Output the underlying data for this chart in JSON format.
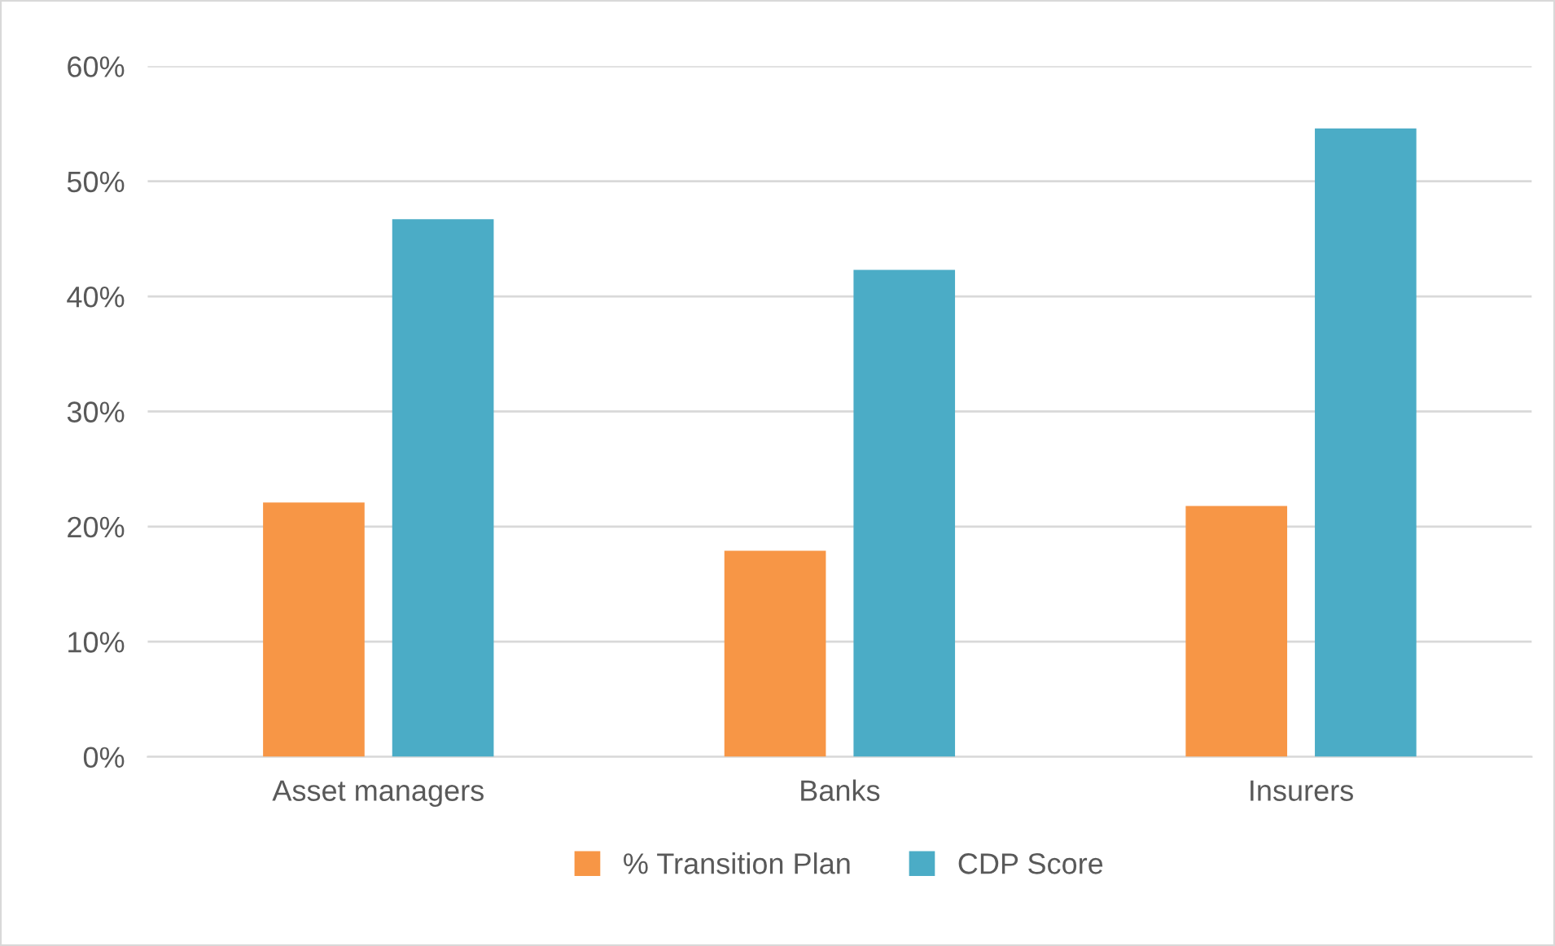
{
  "chart_data": {
    "type": "bar",
    "categories": [
      "Asset managers",
      "Banks",
      "Insurers"
    ],
    "series": [
      {
        "name": "% Transition Plan",
        "color": "#f79646",
        "values": [
          22.1,
          17.9,
          21.8
        ]
      },
      {
        "name": "CDP Score",
        "color": "#4bacc6",
        "values": [
          46.7,
          42.3,
          54.6
        ]
      }
    ],
    "ylim": [
      0,
      60
    ],
    "yticks": [
      {
        "value": 0,
        "label": "0%"
      },
      {
        "value": 10,
        "label": "10%"
      },
      {
        "value": 20,
        "label": "20%"
      },
      {
        "value": 30,
        "label": "30%"
      },
      {
        "value": 40,
        "label": "40%"
      },
      {
        "value": 50,
        "label": "50%"
      },
      {
        "value": 60,
        "label": "60%"
      }
    ],
    "grid": "y",
    "legend": "bottom"
  }
}
